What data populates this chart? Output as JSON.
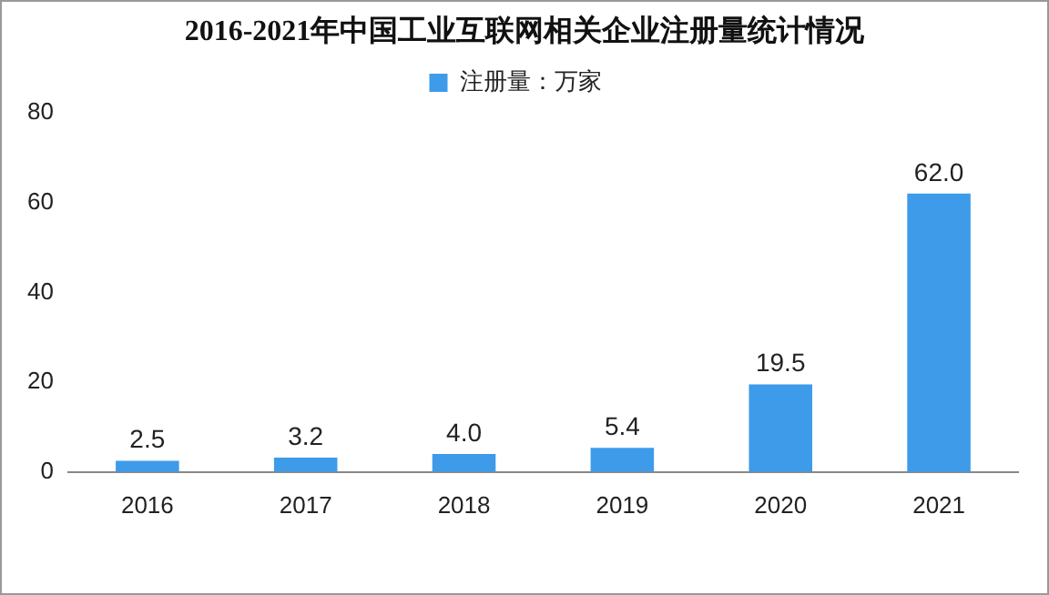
{
  "chart_data": {
    "type": "bar",
    "title": "2016-2021年中国工业互联网相关企业注册量统计情况",
    "categories": [
      "2016",
      "2017",
      "2018",
      "2019",
      "2020",
      "2021"
    ],
    "series": [
      {
        "name": "注册量：万家",
        "color": "#3d9be9",
        "values": [
          2.5,
          3.2,
          4.0,
          5.4,
          19.5,
          62.0
        ],
        "value_labels": [
          "2.5",
          "3.2",
          "4.0",
          "5.4",
          "19.5",
          "62.0"
        ]
      }
    ],
    "ylim": [
      0,
      80
    ],
    "yticks": [
      0,
      20,
      40,
      60,
      80
    ],
    "grid": false,
    "legend": "top"
  }
}
